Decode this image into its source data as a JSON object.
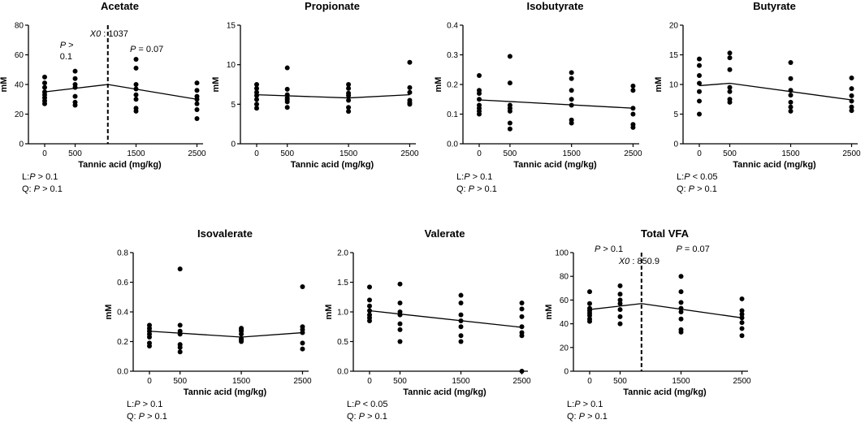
{
  "chart_data": [
    {
      "id": "acetate",
      "type": "scatter",
      "title": "Acetate",
      "xlabel": "Tannic acid (mg/kg)",
      "ylabel": "mM",
      "x_ticks": [
        0,
        500,
        1500,
        2500
      ],
      "x_tick_labels": [
        "0",
        "500",
        "1500",
        "2500"
      ],
      "ylim": [
        0,
        80
      ],
      "y_ticks": [
        0,
        20,
        40,
        60,
        80
      ],
      "y_tick_labels": [
        "0",
        "20",
        "40",
        "60",
        "80"
      ],
      "points": [
        [
          0,
          45
        ],
        [
          0,
          41
        ],
        [
          0,
          38
        ],
        [
          0,
          35
        ],
        [
          0,
          33
        ],
        [
          0,
          31
        ],
        [
          0,
          29
        ],
        [
          0,
          27
        ],
        [
          500,
          49
        ],
        [
          500,
          44
        ],
        [
          500,
          40
        ],
        [
          500,
          38
        ],
        [
          500,
          32
        ],
        [
          500,
          28
        ],
        [
          500,
          26
        ],
        [
          1500,
          57
        ],
        [
          1500,
          51
        ],
        [
          1500,
          40
        ],
        [
          1500,
          37
        ],
        [
          1500,
          33
        ],
        [
          1500,
          30
        ],
        [
          1500,
          24
        ],
        [
          1500,
          22
        ],
        [
          2500,
          41
        ],
        [
          2500,
          36
        ],
        [
          2500,
          32
        ],
        [
          2500,
          30
        ],
        [
          2500,
          27
        ],
        [
          2500,
          23
        ],
        [
          2500,
          17
        ]
      ],
      "fit": [
        [
          0,
          35
        ],
        [
          1037,
          40
        ],
        [
          2500,
          30
        ]
      ],
      "breakpoint": 1037,
      "breakpoint_label": "1037",
      "annotations": {
        "left_p": "P",
        "left_p_rest": " >",
        "left_p_line2": "0.1",
        "right_p": "P",
        "right_p_rest": " = 0.07"
      },
      "stats": {
        "l_prefix": "L:",
        "l_p": "P",
        "l_rest": " > 0.1",
        "q_prefix": "Q: ",
        "q_p": "P",
        "q_rest": " > 0.1"
      }
    },
    {
      "id": "propionate",
      "type": "scatter",
      "title": "Propionate",
      "xlabel": "Tannic acid (mg/kg)",
      "ylabel": "mM",
      "x_ticks": [
        0,
        500,
        1500,
        2500
      ],
      "x_tick_labels": [
        "0",
        "500",
        "1500",
        "2500"
      ],
      "ylim": [
        0,
        15
      ],
      "y_ticks": [
        0,
        5,
        10,
        15
      ],
      "y_tick_labels": [
        "0",
        "5",
        "10",
        "15"
      ],
      "points": [
        [
          0,
          7.5
        ],
        [
          0,
          7.0
        ],
        [
          0,
          6.5
        ],
        [
          0,
          6.1
        ],
        [
          0,
          5.6
        ],
        [
          0,
          5.0
        ],
        [
          0,
          4.5
        ],
        [
          500,
          9.6
        ],
        [
          500,
          6.9
        ],
        [
          500,
          6.2
        ],
        [
          500,
          5.8
        ],
        [
          500,
          5.6
        ],
        [
          500,
          5.3
        ],
        [
          500,
          4.6
        ],
        [
          1500,
          7.5
        ],
        [
          1500,
          7.0
        ],
        [
          1500,
          6.4
        ],
        [
          1500,
          6.1
        ],
        [
          1500,
          5.5
        ],
        [
          1500,
          4.6
        ],
        [
          1500,
          4.1
        ],
        [
          2500,
          10.3
        ],
        [
          2500,
          7.1
        ],
        [
          2500,
          6.5
        ],
        [
          2500,
          5.5
        ],
        [
          2500,
          5.2
        ],
        [
          2500,
          5.0
        ]
      ],
      "fit": [
        [
          0,
          6.2
        ],
        [
          1500,
          5.8
        ],
        [
          2500,
          6.2
        ]
      ],
      "stats": null
    },
    {
      "id": "isobutyrate",
      "type": "scatter",
      "title": "Isobutyrate",
      "xlabel": "Tannic acid (mg/kg)",
      "ylabel": "mM",
      "x_ticks": [
        0,
        500,
        1500,
        2500
      ],
      "x_tick_labels": [
        "0",
        "500",
        "1500",
        "2500"
      ],
      "ylim": [
        0,
        0.4
      ],
      "y_ticks": [
        0,
        0.1,
        0.2,
        0.3,
        0.4
      ],
      "y_tick_labels": [
        "0.0",
        "0.1",
        "0.2",
        "0.3",
        "0.4"
      ],
      "points": [
        [
          0,
          0.23
        ],
        [
          0,
          0.18
        ],
        [
          0,
          0.17
        ],
        [
          0,
          0.15
        ],
        [
          0,
          0.13
        ],
        [
          0,
          0.12
        ],
        [
          0,
          0.11
        ],
        [
          0,
          0.1
        ],
        [
          500,
          0.295
        ],
        [
          500,
          0.205
        ],
        [
          500,
          0.13
        ],
        [
          500,
          0.12
        ],
        [
          500,
          0.11
        ],
        [
          500,
          0.07
        ],
        [
          500,
          0.05
        ],
        [
          1500,
          0.24
        ],
        [
          1500,
          0.22
        ],
        [
          1500,
          0.18
        ],
        [
          1500,
          0.15
        ],
        [
          1500,
          0.13
        ],
        [
          1500,
          0.08
        ],
        [
          1500,
          0.07
        ],
        [
          2500,
          0.195
        ],
        [
          2500,
          0.18
        ],
        [
          2500,
          0.12
        ],
        [
          2500,
          0.1
        ],
        [
          2500,
          0.065
        ],
        [
          2500,
          0.055
        ]
      ],
      "fit": [
        [
          0,
          0.148
        ],
        [
          2500,
          0.12
        ]
      ],
      "stats": {
        "l_prefix": "L:",
        "l_p": "P",
        "l_rest": " > 0.1",
        "q_prefix": "Q: ",
        "q_p": "P",
        "q_rest": " > 0.1"
      }
    },
    {
      "id": "butyrate",
      "type": "scatter",
      "title": "Butyrate",
      "xlabel": "Tannic acid (mg/kg)",
      "ylabel": "mM",
      "x_ticks": [
        0,
        500,
        1500,
        2500
      ],
      "x_tick_labels": [
        "0",
        "500",
        "1500",
        "2500"
      ],
      "ylim": [
        0,
        20
      ],
      "y_ticks": [
        0,
        5,
        10,
        15,
        20
      ],
      "y_tick_labels": [
        "0",
        "5",
        "10",
        "15",
        "20"
      ],
      "points": [
        [
          0,
          14.3
        ],
        [
          0,
          13.2
        ],
        [
          0,
          11.5
        ],
        [
          0,
          10.2
        ],
        [
          0,
          8.8
        ],
        [
          0,
          7.2
        ],
        [
          0,
          5.0
        ],
        [
          500,
          15.3
        ],
        [
          500,
          14.5
        ],
        [
          500,
          12.5
        ],
        [
          500,
          9.5
        ],
        [
          500,
          8.8
        ],
        [
          500,
          7.5
        ],
        [
          500,
          7.0
        ],
        [
          1500,
          13.7
        ],
        [
          1500,
          11.0
        ],
        [
          1500,
          9.0
        ],
        [
          1500,
          8.2
        ],
        [
          1500,
          7.0
        ],
        [
          1500,
          6.2
        ],
        [
          1500,
          5.5
        ],
        [
          2500,
          11.1
        ],
        [
          2500,
          9.3
        ],
        [
          2500,
          8.1
        ],
        [
          2500,
          7.2
        ],
        [
          2500,
          6.2
        ],
        [
          2500,
          5.6
        ]
      ],
      "fit": [
        [
          0,
          9.8
        ],
        [
          500,
          10.2
        ],
        [
          2500,
          7.4
        ]
      ],
      "stats": {
        "l_prefix": "L:",
        "l_p": "P",
        "l_rest": "  < 0.05",
        "q_prefix": "Q: ",
        "q_p": "P",
        "q_rest": " > 0.1"
      }
    },
    {
      "id": "isovalerate",
      "type": "scatter",
      "title": "Isovalerate",
      "xlabel": "Tannic acid (mg/kg)",
      "ylabel": "mM",
      "x_ticks": [
        0,
        500,
        1500,
        2500
      ],
      "x_tick_labels": [
        "0",
        "500",
        "1500",
        "2500"
      ],
      "ylim": [
        0,
        0.8
      ],
      "y_ticks": [
        0,
        0.2,
        0.4,
        0.6,
        0.8
      ],
      "y_tick_labels": [
        "0.0",
        "0.2",
        "0.4",
        "0.6",
        "0.8"
      ],
      "points": [
        [
          0,
          0.31
        ],
        [
          0,
          0.29
        ],
        [
          0,
          0.27
        ],
        [
          0,
          0.25
        ],
        [
          0,
          0.23
        ],
        [
          0,
          0.19
        ],
        [
          0,
          0.17
        ],
        [
          500,
          0.69
        ],
        [
          500,
          0.31
        ],
        [
          500,
          0.27
        ],
        [
          500,
          0.25
        ],
        [
          500,
          0.18
        ],
        [
          500,
          0.16
        ],
        [
          500,
          0.13
        ],
        [
          1500,
          0.29
        ],
        [
          1500,
          0.28
        ],
        [
          1500,
          0.27
        ],
        [
          1500,
          0.25
        ],
        [
          1500,
          0.22
        ],
        [
          1500,
          0.21
        ],
        [
          1500,
          0.2
        ],
        [
          2500,
          0.57
        ],
        [
          2500,
          0.3
        ],
        [
          2500,
          0.28
        ],
        [
          2500,
          0.26
        ],
        [
          2500,
          0.19
        ],
        [
          2500,
          0.15
        ]
      ],
      "fit": [
        [
          0,
          0.27
        ],
        [
          1500,
          0.23
        ],
        [
          2500,
          0.26
        ]
      ],
      "stats": {
        "l_prefix": "L:",
        "l_p": "P",
        "l_rest": " > 0.1",
        "q_prefix": "Q: ",
        "q_p": "P",
        "q_rest": " > 0.1"
      }
    },
    {
      "id": "valerate",
      "type": "scatter",
      "title": "Valerate",
      "xlabel": "Tannic acid (mg/kg)",
      "ylabel": "mM",
      "x_ticks": [
        0,
        500,
        1500,
        2500
      ],
      "x_tick_labels": [
        "0",
        "500",
        "1500",
        "2500"
      ],
      "ylim": [
        0,
        2.0
      ],
      "y_ticks": [
        0,
        0.5,
        1.0,
        1.5,
        2.0
      ],
      "y_tick_labels": [
        "0.0",
        "0.5",
        "1.0",
        "1.5",
        "2.0"
      ],
      "points": [
        [
          0,
          1.42
        ],
        [
          0,
          1.2
        ],
        [
          0,
          1.1
        ],
        [
          0,
          1.02
        ],
        [
          0,
          0.95
        ],
        [
          0,
          0.9
        ],
        [
          0,
          0.85
        ],
        [
          500,
          1.47
        ],
        [
          500,
          1.15
        ],
        [
          500,
          1.0
        ],
        [
          500,
          0.95
        ],
        [
          500,
          0.8
        ],
        [
          500,
          0.7
        ],
        [
          500,
          0.5
        ],
        [
          1500,
          1.28
        ],
        [
          1500,
          1.15
        ],
        [
          1500,
          0.95
        ],
        [
          1500,
          0.85
        ],
        [
          1500,
          0.75
        ],
        [
          1500,
          0.6
        ],
        [
          1500,
          0.5
        ],
        [
          2500,
          1.15
        ],
        [
          2500,
          1.05
        ],
        [
          2500,
          0.92
        ],
        [
          2500,
          0.75
        ],
        [
          2500,
          0.65
        ],
        [
          2500,
          0.6
        ],
        [
          2500,
          0.0
        ]
      ],
      "fit": [
        [
          0,
          1.02
        ],
        [
          2500,
          0.74
        ]
      ],
      "stats": {
        "l_prefix": "L:",
        "l_p": "P",
        "l_rest": "  < 0.05",
        "q_prefix": "Q: ",
        "q_p": "P",
        "q_rest": " > 0.1"
      }
    },
    {
      "id": "total-vfa",
      "type": "scatter",
      "title": "Total VFA",
      "xlabel": "Tannic acid (mg/kg)",
      "ylabel": "mM",
      "x_ticks": [
        0,
        500,
        1500,
        2500
      ],
      "x_tick_labels": [
        "0",
        "500",
        "1500",
        "2500"
      ],
      "ylim": [
        0,
        100
      ],
      "y_ticks": [
        0,
        20,
        40,
        60,
        80,
        100
      ],
      "y_tick_labels": [
        "0",
        "20",
        "40",
        "60",
        "80",
        "100"
      ],
      "points": [
        [
          0,
          67
        ],
        [
          0,
          57
        ],
        [
          0,
          53
        ],
        [
          0,
          51
        ],
        [
          0,
          49
        ],
        [
          0,
          47
        ],
        [
          0,
          44
        ],
        [
          0,
          42
        ],
        [
          500,
          72
        ],
        [
          500,
          65
        ],
        [
          500,
          60
        ],
        [
          500,
          57
        ],
        [
          500,
          52
        ],
        [
          500,
          46
        ],
        [
          500,
          40
        ],
        [
          1500,
          80
        ],
        [
          1500,
          67
        ],
        [
          1500,
          58
        ],
        [
          1500,
          53
        ],
        [
          1500,
          50
        ],
        [
          1500,
          44
        ],
        [
          1500,
          35
        ],
        [
          1500,
          33
        ],
        [
          2500,
          61
        ],
        [
          2500,
          51
        ],
        [
          2500,
          48
        ],
        [
          2500,
          45
        ],
        [
          2500,
          41
        ],
        [
          2500,
          36
        ],
        [
          2500,
          30
        ]
      ],
      "fit": [
        [
          0,
          52
        ],
        [
          850.9,
          57
        ],
        [
          2500,
          45
        ]
      ],
      "breakpoint": 850.9,
      "breakpoint_label": "850.9",
      "annotations": {
        "left_p": "P",
        "left_p_rest": "  > 0.1",
        "right_p": "P",
        "right_p_rest": "  = 0.07"
      },
      "stats": {
        "l_prefix": "L:",
        "l_p": "P",
        "l_rest": " > 0.1",
        "q_prefix": "Q: ",
        "q_p": "P",
        "q_rest": " > 0.1"
      }
    }
  ],
  "common": {
    "x0_label": "X0",
    "x0_sep": " : "
  }
}
